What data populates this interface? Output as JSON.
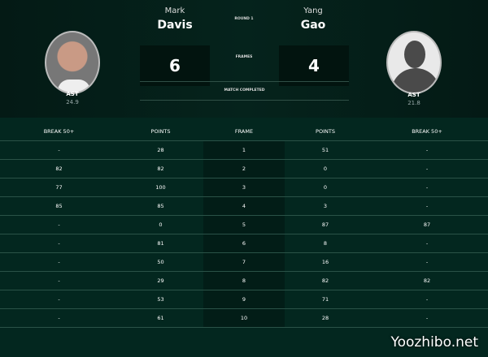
{
  "round": "ROUND 1",
  "frames_label": "FRAMES",
  "status": "MATCH COMPLETED",
  "player1": {
    "first_name": "Mark",
    "last_name": "Davis",
    "score": "6",
    "nation": "AST",
    "average": "24.9"
  },
  "player2": {
    "first_name": "Yang",
    "last_name": "Gao",
    "score": "4",
    "nation": "AST",
    "average": "21.8"
  },
  "table": {
    "headers": [
      "BREAK 50+",
      "POINTS",
      "FRAME",
      "POINTS",
      "BREAK 50+"
    ],
    "rows": [
      [
        "-",
        "28",
        "1",
        "51",
        "-"
      ],
      [
        "82",
        "82",
        "2",
        "0",
        "-"
      ],
      [
        "77",
        "100",
        "3",
        "0",
        "-"
      ],
      [
        "85",
        "85",
        "4",
        "3",
        "-"
      ],
      [
        "-",
        "0",
        "5",
        "87",
        "87"
      ],
      [
        "-",
        "81",
        "6",
        "8",
        "-"
      ],
      [
        "-",
        "50",
        "7",
        "16",
        "-"
      ],
      [
        "-",
        "29",
        "8",
        "82",
        "82"
      ],
      [
        "-",
        "53",
        "9",
        "71",
        "-"
      ],
      [
        "-",
        "61",
        "10",
        "28",
        "-"
      ]
    ]
  },
  "watermark": "Yoozhibo.net"
}
